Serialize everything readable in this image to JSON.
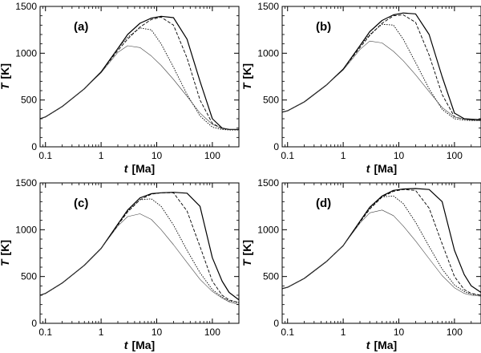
{
  "chart_data": [
    {
      "type": "line",
      "panel_label": "(a)",
      "xlabel_var": "t",
      "xlabel_unit": "[Ma]",
      "ylabel_var": "T",
      "ylabel_unit": "[K]",
      "xscale": "log",
      "xlim": [
        0.08,
        300
      ],
      "ylim": [
        0,
        1500
      ],
      "xticks": [
        0.1,
        1,
        10,
        100
      ],
      "xtick_labels": [
        "0.1",
        "1",
        "10",
        "100"
      ],
      "yticks": [
        0,
        500,
        1000,
        1500
      ],
      "ytick_labels": [
        "0",
        "500",
        "1000",
        "1500"
      ],
      "grid": false,
      "legend": null,
      "series": [
        {
          "name": "solid",
          "style": "solid",
          "x": [
            0.08,
            0.1,
            0.2,
            0.5,
            1,
            2,
            3,
            5,
            8,
            12,
            20,
            35,
            60,
            100,
            150,
            200,
            300
          ],
          "y": [
            300,
            320,
            430,
            620,
            800,
            1050,
            1200,
            1320,
            1375,
            1395,
            1380,
            1150,
            700,
            300,
            200,
            185,
            185
          ]
        },
        {
          "name": "dashed",
          "style": "dashed",
          "x": [
            0.08,
            0.1,
            0.2,
            0.5,
            1,
            2,
            3,
            5,
            8,
            12,
            20,
            35,
            60,
            100,
            150,
            200,
            300
          ],
          "y": [
            300,
            320,
            430,
            620,
            800,
            1030,
            1150,
            1280,
            1360,
            1385,
            1300,
            950,
            500,
            250,
            195,
            185,
            185
          ]
        },
        {
          "name": "dotted",
          "style": "dotted",
          "x": [
            0.08,
            0.1,
            0.2,
            0.5,
            1,
            2,
            3,
            5,
            8,
            12,
            20,
            35,
            60,
            100,
            150,
            200,
            300
          ],
          "y": [
            300,
            320,
            430,
            620,
            800,
            1050,
            1170,
            1270,
            1250,
            1100,
            850,
            560,
            330,
            210,
            185,
            180,
            180
          ]
        },
        {
          "name": "thin",
          "style": "thin",
          "x": [
            0.08,
            0.1,
            0.2,
            0.5,
            1,
            2,
            3,
            5,
            8,
            12,
            20,
            35,
            60,
            100,
            150,
            200,
            300
          ],
          "y": [
            300,
            320,
            430,
            620,
            790,
            1010,
            1080,
            1060,
            970,
            870,
            720,
            540,
            360,
            240,
            195,
            185,
            180
          ]
        }
      ]
    },
    {
      "type": "line",
      "panel_label": "(b)",
      "xlabel_var": "t",
      "xlabel_unit": "[Ma]",
      "ylabel_var": "T",
      "ylabel_unit": "[K]",
      "xscale": "log",
      "xlim": [
        0.08,
        300
      ],
      "ylim": [
        0,
        1500
      ],
      "xticks": [
        0.1,
        1,
        10,
        100
      ],
      "xtick_labels": [
        "0.1",
        "1",
        "10",
        "100"
      ],
      "yticks": [
        0,
        500,
        1000,
        1500
      ],
      "ytick_labels": [
        "0",
        "500",
        "1000",
        "1500"
      ],
      "grid": false,
      "legend": null,
      "series": [
        {
          "name": "solid",
          "style": "solid",
          "x": [
            0.08,
            0.1,
            0.2,
            0.5,
            1,
            2,
            3,
            5,
            8,
            12,
            20,
            35,
            60,
            100,
            150,
            200,
            300
          ],
          "y": [
            370,
            385,
            480,
            660,
            830,
            1080,
            1230,
            1350,
            1410,
            1430,
            1420,
            1200,
            750,
            360,
            300,
            295,
            290
          ]
        },
        {
          "name": "dashed",
          "style": "dashed",
          "x": [
            0.08,
            0.1,
            0.2,
            0.5,
            1,
            2,
            3,
            5,
            8,
            12,
            20,
            35,
            60,
            100,
            150,
            200,
            300
          ],
          "y": [
            370,
            385,
            480,
            660,
            830,
            1060,
            1190,
            1320,
            1400,
            1410,
            1330,
            980,
            560,
            320,
            295,
            290,
            285
          ]
        },
        {
          "name": "dotted",
          "style": "dotted",
          "x": [
            0.08,
            0.1,
            0.2,
            0.5,
            1,
            2,
            3,
            5,
            8,
            12,
            20,
            35,
            60,
            100,
            150,
            200,
            300
          ],
          "y": [
            370,
            385,
            480,
            660,
            830,
            1080,
            1200,
            1310,
            1300,
            1150,
            900,
            620,
            400,
            300,
            285,
            280,
            280
          ]
        },
        {
          "name": "thin",
          "style": "thin",
          "x": [
            0.08,
            0.1,
            0.2,
            0.5,
            1,
            2,
            3,
            5,
            8,
            12,
            20,
            35,
            60,
            100,
            150,
            200,
            300
          ],
          "y": [
            370,
            385,
            480,
            660,
            820,
            1040,
            1130,
            1110,
            1020,
            920,
            770,
            590,
            420,
            320,
            295,
            285,
            280
          ]
        }
      ]
    },
    {
      "type": "line",
      "panel_label": "(c)",
      "xlabel_var": "t",
      "xlabel_unit": "[Ma]",
      "ylabel_var": "T",
      "ylabel_unit": "[K]",
      "xscale": "log",
      "xlim": [
        0.08,
        300
      ],
      "ylim": [
        0,
        1500
      ],
      "xticks": [
        0.1,
        1,
        10,
        100
      ],
      "xtick_labels": [
        "0.1",
        "1",
        "10",
        "100"
      ],
      "yticks": [
        0,
        500,
        1000,
        1500
      ],
      "ytick_labels": [
        "0",
        "500",
        "1000",
        "1500"
      ],
      "grid": false,
      "legend": null,
      "series": [
        {
          "name": "solid",
          "style": "solid",
          "x": [
            0.08,
            0.1,
            0.2,
            0.5,
            1,
            2,
            3,
            5,
            8,
            12,
            20,
            35,
            60,
            100,
            150,
            200,
            300
          ],
          "y": [
            300,
            320,
            430,
            620,
            800,
            1060,
            1210,
            1340,
            1385,
            1395,
            1400,
            1390,
            1250,
            700,
            450,
            330,
            250
          ]
        },
        {
          "name": "dashed",
          "style": "dashed",
          "x": [
            0.08,
            0.1,
            0.2,
            0.5,
            1,
            2,
            3,
            5,
            8,
            12,
            20,
            35,
            60,
            100,
            150,
            200,
            300
          ],
          "y": [
            300,
            320,
            430,
            620,
            800,
            1050,
            1190,
            1320,
            1380,
            1395,
            1395,
            1200,
            820,
            450,
            300,
            250,
            220
          ]
        },
        {
          "name": "dotted",
          "style": "dotted",
          "x": [
            0.08,
            0.1,
            0.2,
            0.5,
            1,
            2,
            3,
            5,
            8,
            12,
            20,
            35,
            60,
            100,
            150,
            200,
            300
          ],
          "y": [
            300,
            320,
            430,
            620,
            800,
            1060,
            1200,
            1320,
            1330,
            1250,
            1050,
            780,
            540,
            360,
            280,
            240,
            220
          ]
        },
        {
          "name": "thin",
          "style": "thin",
          "x": [
            0.08,
            0.1,
            0.2,
            0.5,
            1,
            2,
            3,
            5,
            8,
            12,
            20,
            35,
            60,
            100,
            150,
            200,
            300
          ],
          "y": [
            300,
            320,
            430,
            620,
            800,
            1040,
            1140,
            1170,
            1110,
            1000,
            840,
            650,
            470,
            340,
            270,
            230,
            200
          ]
        }
      ]
    },
    {
      "type": "line",
      "panel_label": "(d)",
      "xlabel_var": "t",
      "xlabel_unit": "[Ma]",
      "ylabel_var": "T",
      "ylabel_unit": "[K]",
      "xscale": "log",
      "xlim": [
        0.08,
        300
      ],
      "ylim": [
        0,
        1500
      ],
      "xticks": [
        0.1,
        1,
        10,
        100
      ],
      "xtick_labels": [
        "0.1",
        "1",
        "10",
        "100"
      ],
      "yticks": [
        0,
        500,
        1000,
        1500
      ],
      "ytick_labels": [
        "0",
        "500",
        "1000",
        "1500"
      ],
      "grid": false,
      "legend": null,
      "series": [
        {
          "name": "solid",
          "style": "solid",
          "x": [
            0.08,
            0.1,
            0.2,
            0.5,
            1,
            2,
            3,
            5,
            8,
            12,
            20,
            35,
            60,
            100,
            150,
            200,
            300
          ],
          "y": [
            370,
            385,
            480,
            660,
            830,
            1090,
            1240,
            1360,
            1420,
            1435,
            1440,
            1430,
            1300,
            780,
            520,
            400,
            330
          ]
        },
        {
          "name": "dashed",
          "style": "dashed",
          "x": [
            0.08,
            0.1,
            0.2,
            0.5,
            1,
            2,
            3,
            5,
            8,
            12,
            20,
            35,
            60,
            100,
            150,
            200,
            300
          ],
          "y": [
            370,
            385,
            480,
            660,
            830,
            1080,
            1220,
            1350,
            1410,
            1430,
            1420,
            1230,
            850,
            500,
            360,
            320,
            300
          ]
        },
        {
          "name": "dotted",
          "style": "dotted",
          "x": [
            0.08,
            0.1,
            0.2,
            0.5,
            1,
            2,
            3,
            5,
            8,
            12,
            20,
            35,
            60,
            100,
            150,
            200,
            300
          ],
          "y": [
            370,
            385,
            480,
            660,
            830,
            1090,
            1230,
            1350,
            1360,
            1280,
            1080,
            820,
            580,
            410,
            340,
            310,
            300
          ]
        },
        {
          "name": "thin",
          "style": "thin",
          "x": [
            0.08,
            0.1,
            0.2,
            0.5,
            1,
            2,
            3,
            5,
            8,
            12,
            20,
            35,
            60,
            100,
            150,
            200,
            300
          ],
          "y": [
            370,
            385,
            480,
            660,
            830,
            1070,
            1180,
            1210,
            1150,
            1040,
            880,
            690,
            510,
            380,
            320,
            300,
            290
          ]
        }
      ]
    }
  ]
}
